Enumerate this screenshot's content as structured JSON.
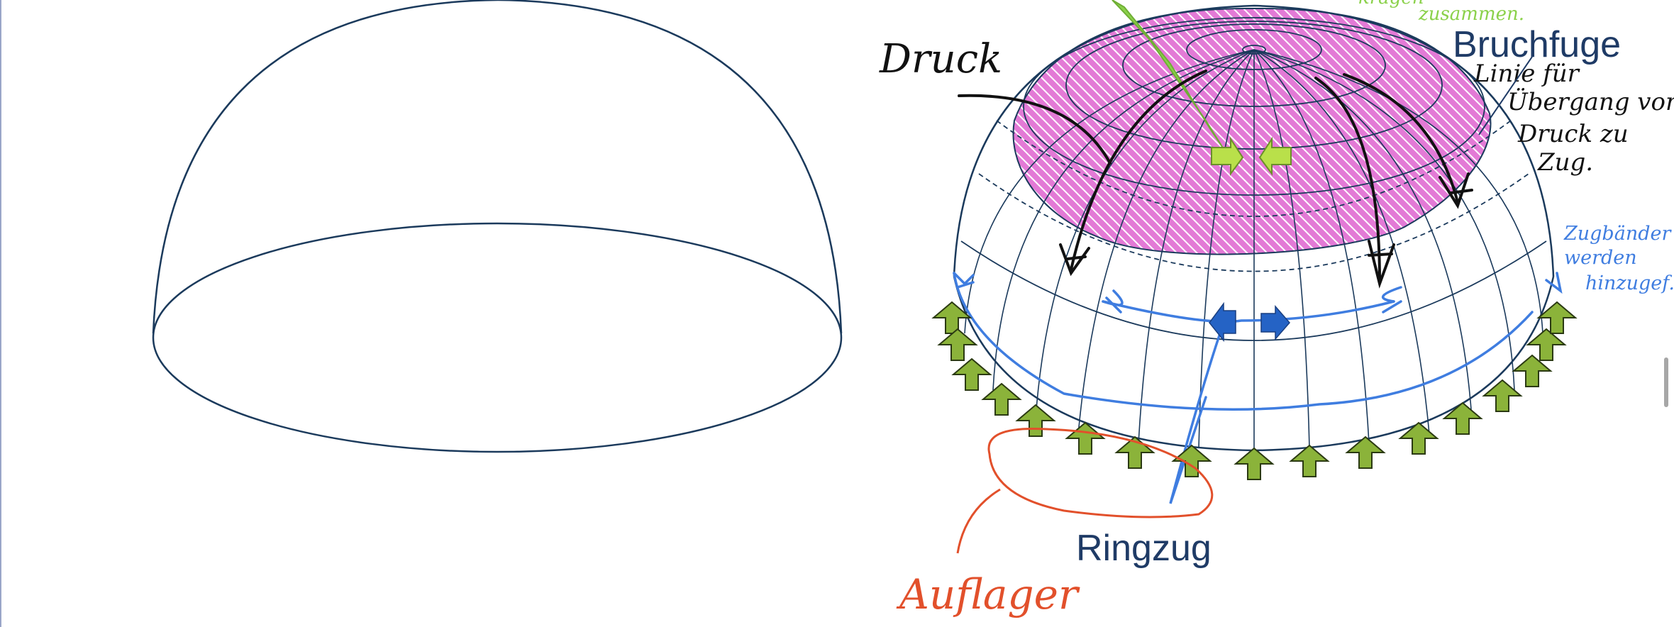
{
  "labels": {
    "druck": "Druck",
    "bruchfuge": "Bruchfuge",
    "ringzug": "Ringzug",
    "auflager": "Auflager",
    "note_line1": "Linie für",
    "note_line2": "Übergang von",
    "note_line3": "Druck zu",
    "note_line4": "Zug.",
    "blue_line1": "Zugbänder",
    "blue_line2": "werden",
    "blue_line3": "hinzugef.",
    "green_line1": "kragen",
    "green_line2": "zusammen."
  },
  "colors": {
    "dome_outline": "#1b3a5c",
    "hatch_fill": "#e37ad6",
    "druck_ink": "#111111",
    "zug_ink": "#3f7de0",
    "support_arrow": "#8bb33a",
    "auflager_ink": "#e2502b",
    "green_ink": "#8bd14b",
    "label_navy": "#1f3b66"
  }
}
